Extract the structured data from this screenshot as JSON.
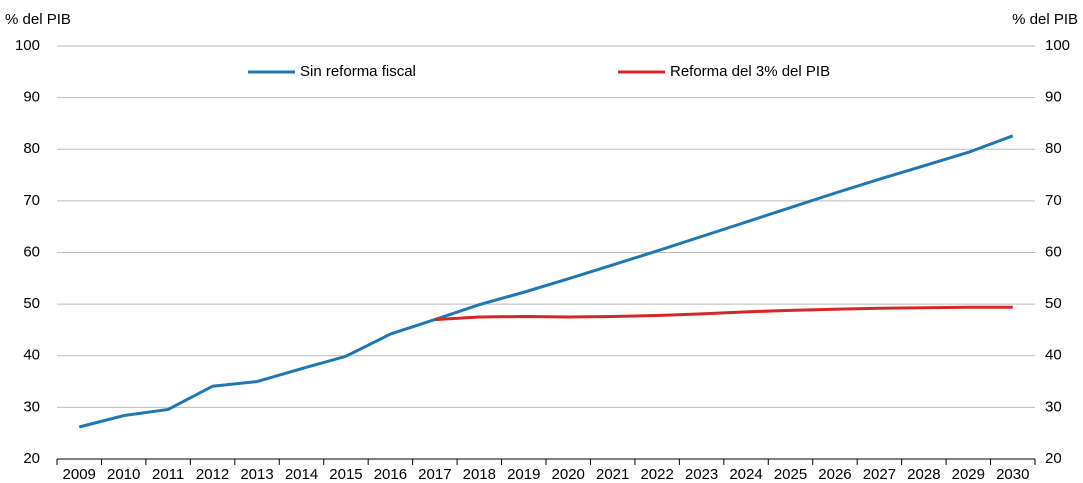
{
  "chart_data": {
    "type": "line",
    "yaxis_label": "% del PIB",
    "y2axis_label": "% del PIB",
    "categories": [
      "2009",
      "2010",
      "2011",
      "2012",
      "2013",
      "2014",
      "2015",
      "2016",
      "2017",
      "2018",
      "2019",
      "2020",
      "2021",
      "2022",
      "2023",
      "2024",
      "2025",
      "2026",
      "2027",
      "2028",
      "2029",
      "2030"
    ],
    "series": [
      {
        "name": "Sin reforma fiscal",
        "color": "#1f77b4",
        "values": [
          26.2,
          28.4,
          29.6,
          34.1,
          35.0,
          37.5,
          39.9,
          44.2,
          47.0,
          49.9,
          52.3,
          54.9,
          57.6,
          60.3,
          63.1,
          65.9,
          68.7,
          71.5,
          74.2,
          76.8,
          79.4,
          82.6
        ]
      },
      {
        "name": "Reforma del 3% del PIB",
        "color": "#d62728",
        "values": [
          null,
          null,
          null,
          null,
          null,
          null,
          null,
          null,
          47.0,
          47.5,
          47.6,
          47.5,
          47.6,
          47.8,
          48.1,
          48.5,
          48.8,
          49.0,
          49.2,
          49.3,
          49.4,
          49.4
        ]
      }
    ],
    "ylim": [
      20,
      100
    ],
    "yticks": [
      20,
      30,
      40,
      50,
      60,
      70,
      80,
      90,
      100
    ],
    "y2lim": [
      20,
      100
    ],
    "y2ticks": [
      20,
      30,
      40,
      50,
      60,
      70,
      80,
      90,
      100
    ],
    "grid": true,
    "legend": "top"
  }
}
